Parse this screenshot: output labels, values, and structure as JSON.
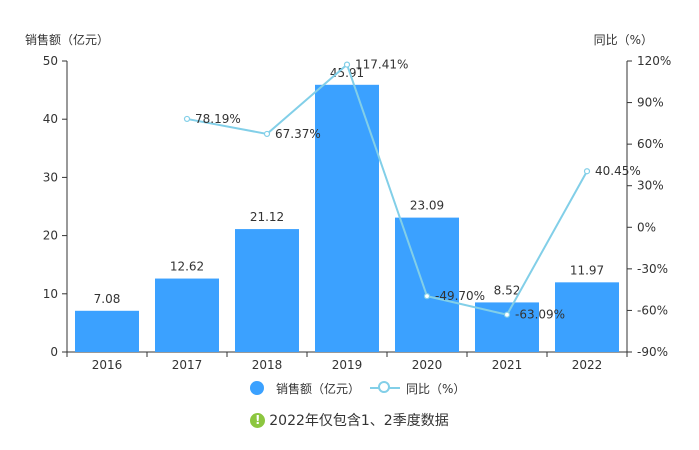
{
  "chart_data": {
    "type": "bar",
    "categories": [
      "2016",
      "2017",
      "2018",
      "2019",
      "2020",
      "2021",
      "2022"
    ],
    "ylabel_left": "销售额（亿元）",
    "ylabel_right": "同比（%）",
    "ylim_left": [
      0,
      50
    ],
    "ylim_right": [
      -90,
      120
    ],
    "left_ticks": [
      "0",
      "10",
      "20",
      "30",
      "40",
      "50"
    ],
    "right_ticks": [
      "-90%",
      "-60%",
      "-30%",
      "0%",
      "30%",
      "60%",
      "90%",
      "120%"
    ],
    "series": [
      {
        "name": "销售额（亿元）",
        "type": "bar",
        "axis": "left",
        "color": "#3ba1ff",
        "values": [
          7.08,
          12.62,
          21.12,
          45.91,
          23.09,
          8.52,
          11.97
        ],
        "labels": [
          "7.08",
          "12.62",
          "21.12",
          "45.91",
          "23.09",
          "8.52",
          "11.97"
        ]
      },
      {
        "name": "同比（%）",
        "type": "line",
        "axis": "right",
        "color": "#82cfe8",
        "values": [
          null,
          78.19,
          67.37,
          117.41,
          -49.7,
          -63.09,
          40.45
        ],
        "labels": [
          "",
          "78.19%",
          "67.37%",
          "117.41%",
          "-49.70%",
          "-63.09%",
          "40.45%"
        ]
      }
    ],
    "grid": false,
    "legend_position": "bottom"
  },
  "legend": {
    "bar_label": "销售额（亿元）",
    "line_label": "同比（%）"
  },
  "note": {
    "icon": "exclamation-icon",
    "icon_color": "#8cc63f",
    "text": "2022年仅包含1、2季度数据"
  }
}
